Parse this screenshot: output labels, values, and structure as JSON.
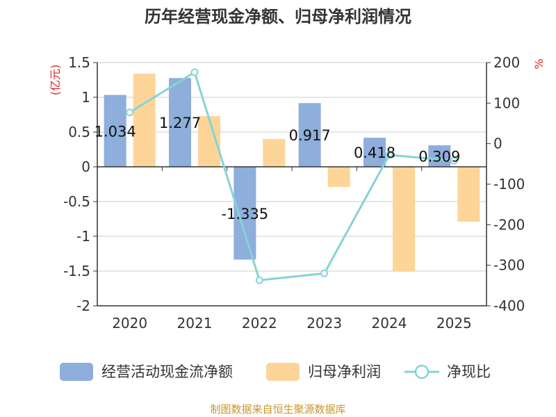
{
  "chart_data": {
    "type": "bar",
    "title": "历年经营现金净额、归母净利润情况",
    "categories": [
      "2020",
      "2021",
      "2022",
      "2023",
      "2024",
      "2025"
    ],
    "series": [
      {
        "name": "经营活动现金流净额",
        "type": "bar",
        "axis": "left",
        "color": "#8eaedb",
        "values": [
          1.034,
          1.277,
          -1.335,
          0.917,
          0.418,
          0.309
        ],
        "labels": [
          "1.034",
          "1.277",
          "-1.335",
          "0.917",
          "0.418",
          "0.309"
        ]
      },
      {
        "name": "归母净利润",
        "type": "bar",
        "axis": "left",
        "color": "#fdd598",
        "values": [
          1.34,
          0.73,
          0.4,
          -0.29,
          -1.51,
          -0.79
        ]
      },
      {
        "name": "净现比",
        "type": "line",
        "axis": "right",
        "color": "#86d3d6",
        "values": [
          77,
          176,
          -337,
          -320,
          -28,
          -42
        ]
      }
    ],
    "y_left": {
      "label": "(亿元)",
      "ylim": [
        -2,
        1.5
      ],
      "ticks": [
        "1.5",
        "1",
        "0.5",
        "0",
        "-0.5",
        "-1",
        "-1.5",
        "-2"
      ]
    },
    "y_right": {
      "label": "%",
      "ylim": [
        -400,
        200
      ],
      "ticks": [
        "200",
        "100",
        "0",
        "-100",
        "-200",
        "-300",
        "-400"
      ]
    },
    "grid": true,
    "legend_position": "bottom",
    "source": "制图数据来自恒生聚源数据库"
  }
}
